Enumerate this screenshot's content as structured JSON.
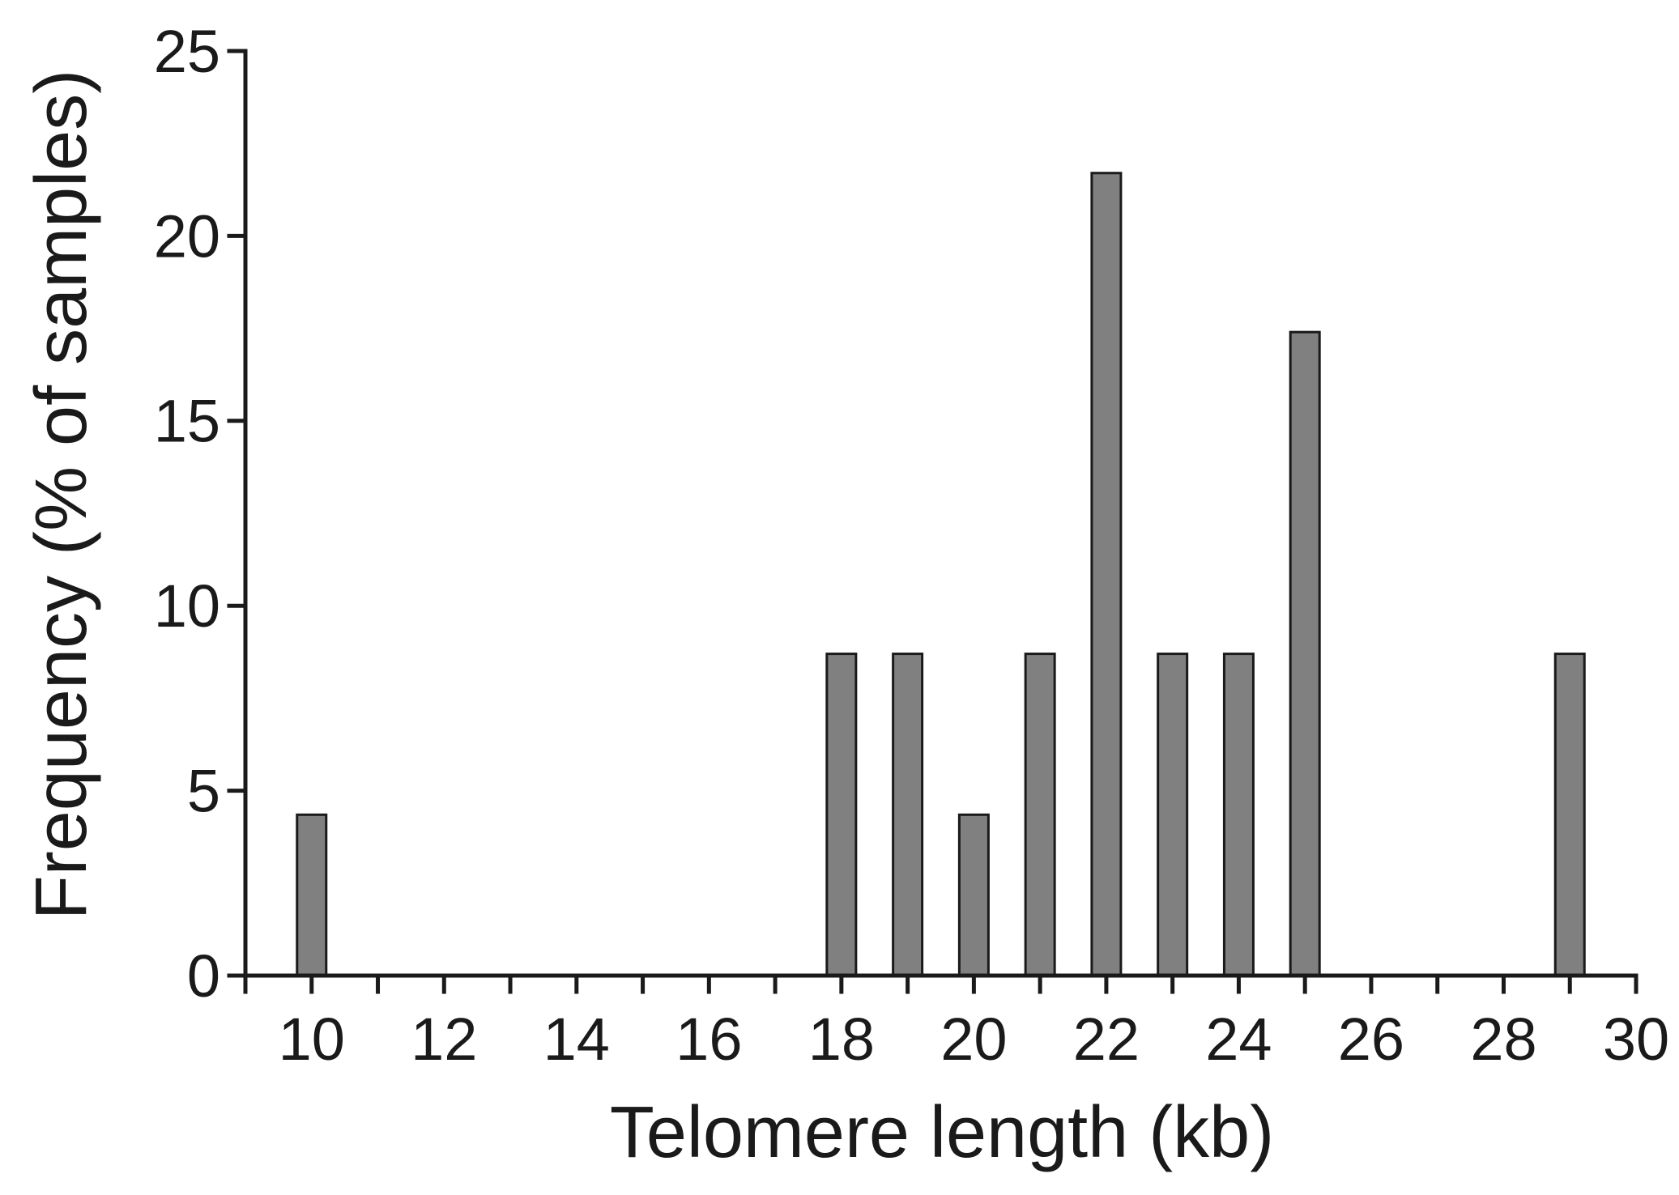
{
  "chart_data": {
    "type": "bar",
    "x": [
      10,
      18,
      19,
      20,
      21,
      22,
      23,
      24,
      25,
      29
    ],
    "values": [
      4.35,
      8.7,
      8.7,
      4.35,
      8.7,
      21.7,
      8.7,
      8.7,
      17.4,
      8.7
    ],
    "xlabel": "Telomere length (kb)",
    "ylabel": "Frequency (% of samples)",
    "xlim": [
      9,
      30
    ],
    "ylim": [
      0,
      25
    ],
    "xticks": [
      10,
      12,
      14,
      16,
      18,
      20,
      22,
      24,
      26,
      28,
      30
    ],
    "xtick_labels": [
      "10",
      "12",
      "14",
      "16",
      "18",
      "20",
      "22",
      "24",
      "26",
      "28",
      "30"
    ],
    "x_minor_tick_step": 1,
    "yticks": [
      0,
      5,
      10,
      15,
      20,
      25
    ],
    "ytick_labels": [
      "0",
      "5",
      "10",
      "15",
      "20",
      "25"
    ],
    "grid": false,
    "legend": "none",
    "bar_color": "#808080",
    "bar_edge_color": "#1a1a1a"
  }
}
